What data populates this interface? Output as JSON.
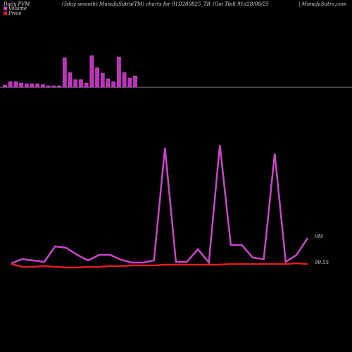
{
  "chart_data": [
    {
      "type": "bar",
      "title": "Daily PVM",
      "subtitle": "(5day smooth) MunafaSutra(TM) charts for 91D280825_TB",
      "title2": "(Goi  Tbill 91d28/08/25",
      "title3": "| MunafaSutra.com",
      "color": "#c030c0",
      "values": [
        3,
        8,
        8,
        6,
        5,
        5,
        5,
        4,
        2,
        2,
        2,
        42,
        21,
        11,
        11,
        6,
        45,
        28,
        20,
        12,
        8,
        43,
        21,
        13,
        16
      ],
      "ylim": [
        0,
        50
      ]
    },
    {
      "type": "line",
      "series": [
        {
          "name": "Volume",
          "color": "#cc44cc",
          "values": [
            26,
            32,
            30,
            28,
            50,
            48,
            38,
            30,
            38,
            38,
            31,
            27,
            27,
            30,
            190,
            28,
            28,
            46,
            27,
            194,
            52,
            52,
            34,
            32,
            182,
            28,
            38,
            62
          ],
          "end_label": "0M"
        },
        {
          "name": "Price",
          "color": "#e02020",
          "values": [
            25,
            21,
            21,
            22,
            21,
            20,
            20,
            21,
            21,
            22,
            22,
            23,
            23,
            23,
            24,
            24,
            24,
            24,
            24,
            24,
            25,
            25,
            25,
            25,
            25,
            25,
            26,
            25
          ],
          "end_label": "99.55"
        }
      ],
      "ylim": [
        0,
        200
      ]
    }
  ]
}
